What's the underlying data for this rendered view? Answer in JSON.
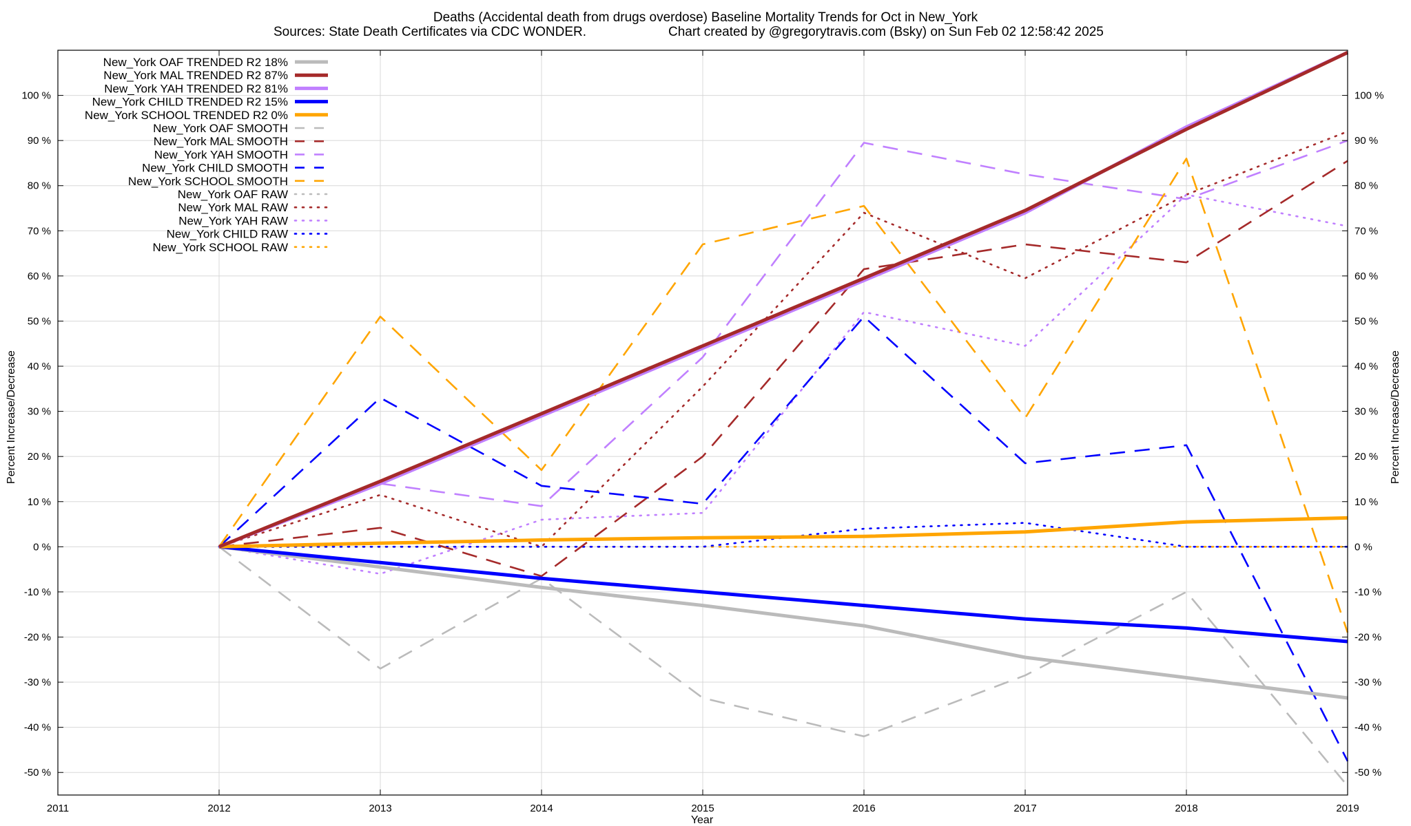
{
  "chart_data": {
    "type": "line",
    "title": "Deaths (Accidental death from drugs overdose)  Baseline Mortality Trends for Oct in New_York",
    "subtitle_left": "Sources: State Death Certificates via CDC WONDER.",
    "subtitle_right": "Chart created by @gregorytravis.com (Bsky) on Sun Feb 02 12:58:42 2025",
    "xlabel": "Year",
    "ylabel": "Percent Increase/Decrease",
    "xlim": [
      2011,
      2019
    ],
    "ylim": [
      -55,
      110
    ],
    "x_ticks": [
      2011,
      2012,
      2013,
      2014,
      2015,
      2016,
      2017,
      2018,
      2019
    ],
    "y_ticks": [
      -50,
      -40,
      -30,
      -20,
      -10,
      0,
      10,
      20,
      30,
      40,
      50,
      60,
      70,
      80,
      90,
      100
    ],
    "y_tick_labels": [
      "-50 %",
      "-40 %",
      "-30 %",
      "-20 %",
      "-10 %",
      "0 %",
      "10 %",
      "20 %",
      "30 %",
      "40 %",
      "50 %",
      "60 %",
      "70 %",
      "80 %",
      "90 %",
      "100 %"
    ],
    "x": [
      2012,
      2013,
      2014,
      2015,
      2016,
      2017,
      2018,
      2019
    ],
    "legend_position": "top-left",
    "grid": true,
    "series": [
      {
        "name": "New_York OAF TRENDED R2  18%",
        "style": "solid",
        "color": "#bbbbbb",
        "values": [
          0,
          -4.5,
          -9,
          -13,
          -17.5,
          -24.5,
          -29,
          -33.5
        ]
      },
      {
        "name": "New_York MAL TRENDED R2  87%",
        "style": "solid",
        "color": "#a52a2a",
        "values": [
          0,
          14.5,
          29.5,
          44.5,
          59.5,
          74.5,
          92.5,
          109.5
        ]
      },
      {
        "name": "New_York YAH TRENDED R2  81%",
        "style": "solid",
        "color": "#c080ff",
        "values": [
          0,
          14,
          29,
          44,
          59,
          74,
          93,
          109.5
        ]
      },
      {
        "name": "New_York CHILD TRENDED R2  15%",
        "style": "solid",
        "color": "#0000ff",
        "values": [
          0,
          -3.5,
          -7,
          -10,
          -13,
          -16,
          -18,
          -21
        ]
      },
      {
        "name": "New_York SCHOOL TRENDED R2  0%",
        "style": "solid",
        "color": "#ffa500",
        "values": [
          0,
          0.8,
          1.5,
          2,
          2.3,
          3.3,
          5.5,
          6.4
        ]
      },
      {
        "name": "New_York OAF SMOOTH",
        "style": "dashed",
        "color": "#bbbbbb",
        "values": [
          0,
          -27,
          -7,
          -33.5,
          -42,
          -28.5,
          -10,
          -53
        ]
      },
      {
        "name": "New_York MAL SMOOTH",
        "style": "dashed",
        "color": "#a52a2a",
        "values": [
          0,
          4.2,
          -6.5,
          20,
          61.5,
          67,
          63,
          85.5
        ]
      },
      {
        "name": "New_York YAH SMOOTH",
        "style": "dashed",
        "color": "#c080ff",
        "values": [
          0,
          14,
          9,
          42,
          89.5,
          82.5,
          77,
          90
        ]
      },
      {
        "name": "New_York CHILD SMOOTH",
        "style": "dashed",
        "color": "#0000ff",
        "values": [
          0,
          33,
          13.5,
          9.5,
          51,
          18.5,
          22.5,
          -47.5
        ]
      },
      {
        "name": "New_York SCHOOL SMOOTH",
        "style": "dashed",
        "color": "#ffa500",
        "values": [
          0,
          51,
          17,
          67,
          75.5,
          28.5,
          86,
          -19
        ]
      },
      {
        "name": "New_York OAF RAW",
        "style": "dotted",
        "color": "#bbbbbb",
        "values": [
          0,
          0,
          0,
          0,
          0,
          0,
          0,
          0
        ]
      },
      {
        "name": "New_York MAL RAW",
        "style": "dotted",
        "color": "#a52a2a",
        "values": [
          0,
          11.5,
          0,
          35.5,
          74,
          59.5,
          78,
          92
        ]
      },
      {
        "name": "New_York YAH RAW",
        "style": "dotted",
        "color": "#c080ff",
        "values": [
          0,
          -6,
          6,
          7.5,
          52,
          44.5,
          78,
          71
        ]
      },
      {
        "name": "New_York CHILD RAW",
        "style": "dotted",
        "color": "#0000ff",
        "values": [
          0,
          0,
          0,
          0,
          4,
          5.3,
          0,
          0
        ]
      },
      {
        "name": "New_York SCHOOL RAW",
        "style": "dotted",
        "color": "#ffa500",
        "values": [
          0,
          0,
          0,
          0,
          0,
          0,
          0,
          0
        ]
      }
    ]
  }
}
